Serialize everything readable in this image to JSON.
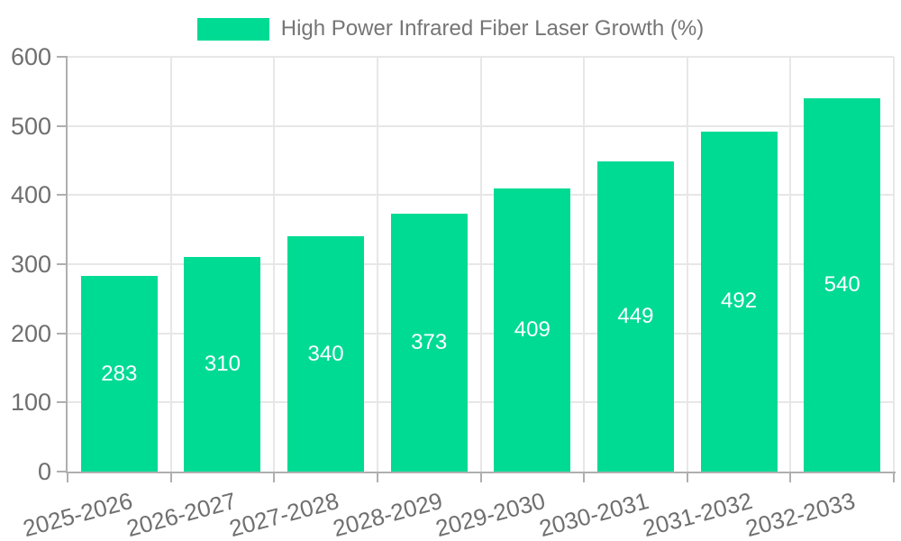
{
  "legend": {
    "label": "High Power Infrared Fiber Laser Growth (%)"
  },
  "chart_data": {
    "type": "bar",
    "title": "High Power Infrared Fiber Laser Growth (%)",
    "categories": [
      "2025-2026",
      "2026-2027",
      "2027-2028",
      "2028-2029",
      "2029-2030",
      "2030-2031",
      "2031-2032",
      "2032-2033"
    ],
    "values": [
      283,
      310,
      340,
      373,
      409,
      449,
      492,
      540
    ],
    "value_labels": [
      "283",
      "310",
      "340",
      "373",
      "409",
      "449",
      "492",
      "540"
    ],
    "xlabel": "",
    "ylabel": "",
    "ylim": [
      0,
      600
    ],
    "yticks": [
      0,
      100,
      200,
      300,
      400,
      500,
      600
    ],
    "grid": true,
    "legend_position": "top"
  },
  "colors": {
    "bar": "#00DB94",
    "grid": "#E7E7E7",
    "axis": "#AFAFAF",
    "tick_label": "#6F6F6F",
    "legend_text": "#757575",
    "value_label": "#FFFFFF",
    "background": "#FFFFFF"
  }
}
